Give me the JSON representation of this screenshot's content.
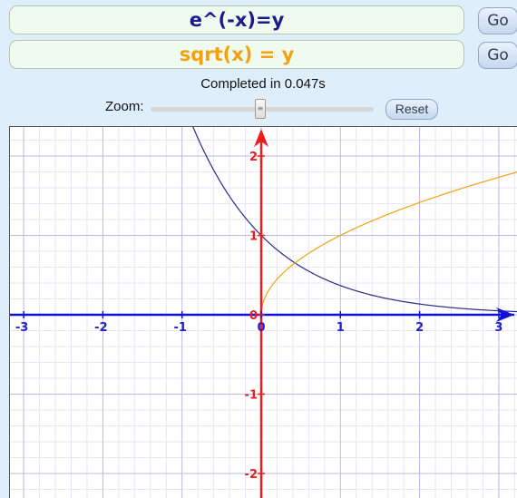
{
  "equations": [
    {
      "value": "e^(-x)=y",
      "color": "#1a1a8c",
      "button_label": "Go"
    },
    {
      "value": "sqrt(x) = y",
      "color": "#f5a010",
      "button_label": "Go"
    }
  ],
  "status_text": "Completed in 0.047s",
  "zoom": {
    "label": "Zoom:",
    "grip": "≡",
    "reset_label": "Reset"
  },
  "chart_data": {
    "type": "line",
    "xlim": [
      -3.2,
      3.2
    ],
    "ylim": [
      -2.3,
      2.4
    ],
    "x_ticks": [
      "-3",
      "-2",
      "-1",
      "0",
      "1",
      "2",
      "3"
    ],
    "y_ticks": [
      "2",
      "1",
      "0",
      "-1",
      "-2"
    ],
    "grid": true,
    "series": [
      {
        "equation": "e^(-x)=y",
        "color": "#2a2a8a",
        "x": [
          -0.85,
          -0.5,
          -0.25,
          0,
          0.25,
          0.5,
          1,
          1.5,
          2,
          2.5,
          3,
          3.2
        ],
        "y": [
          2.34,
          1.65,
          1.28,
          1.0,
          0.78,
          0.61,
          0.37,
          0.22,
          0.14,
          0.08,
          0.05,
          0.04
        ]
      },
      {
        "equation": "sqrt(x) = y",
        "color": "#f5a010",
        "x": [
          0,
          0.01,
          0.05,
          0.1,
          0.25,
          0.5,
          1,
          1.5,
          2,
          2.5,
          3,
          3.2
        ],
        "y": [
          0,
          0.1,
          0.22,
          0.32,
          0.5,
          0.71,
          1.0,
          1.22,
          1.41,
          1.58,
          1.73,
          1.79
        ]
      }
    ]
  }
}
